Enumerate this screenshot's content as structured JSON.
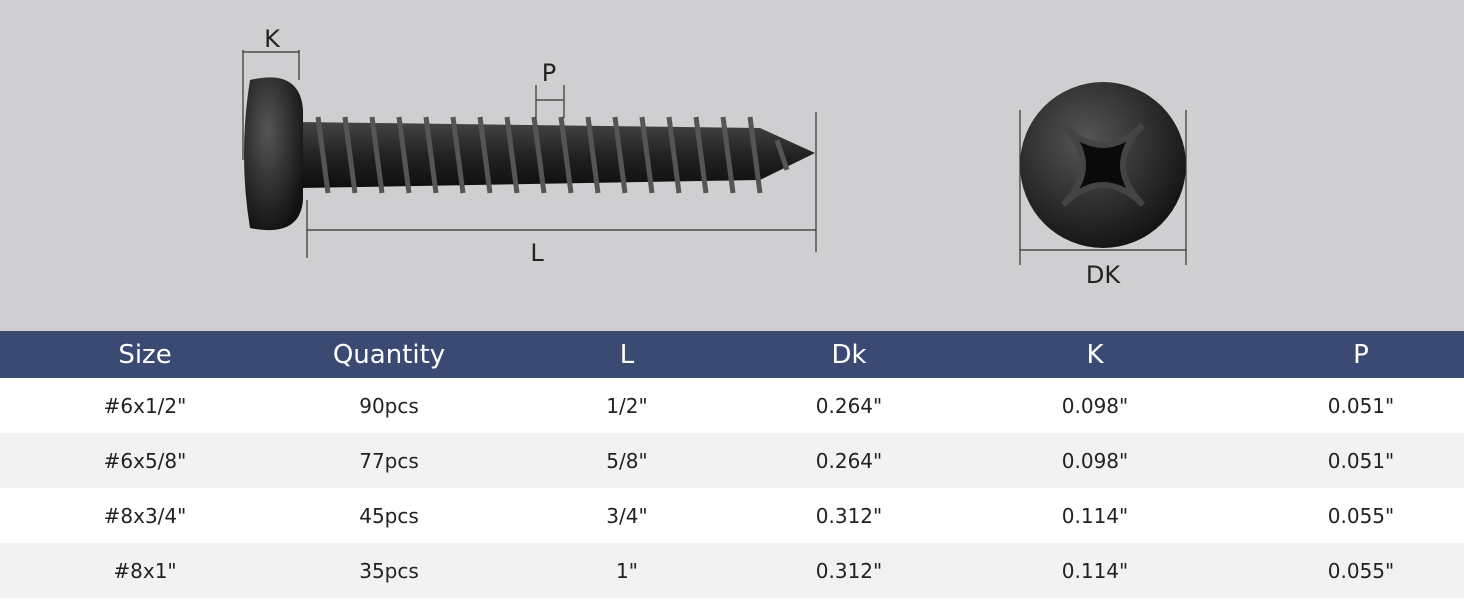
{
  "diagram": {
    "labels": {
      "k": "K",
      "p": "P",
      "l": "L",
      "dk": "DK"
    }
  },
  "table": {
    "header": [
      "Size",
      "Quantity",
      "L",
      "Dk",
      "K",
      "P"
    ],
    "rows": [
      [
        "#6x1/2\"",
        "90pcs",
        "1/2\"",
        "0.264\"",
        "0.098\"",
        "0.051\""
      ],
      [
        "#6x5/8\"",
        "77pcs",
        "5/8\"",
        "0.264\"",
        "0.098\"",
        "0.051\""
      ],
      [
        "#8x3/4\"",
        "45pcs",
        "3/4\"",
        "0.312\"",
        "0.114\"",
        "0.055\""
      ],
      [
        "#8x1\"",
        "35pcs",
        "1\"",
        "0.312\"",
        "0.114\"",
        "0.055\""
      ]
    ]
  }
}
